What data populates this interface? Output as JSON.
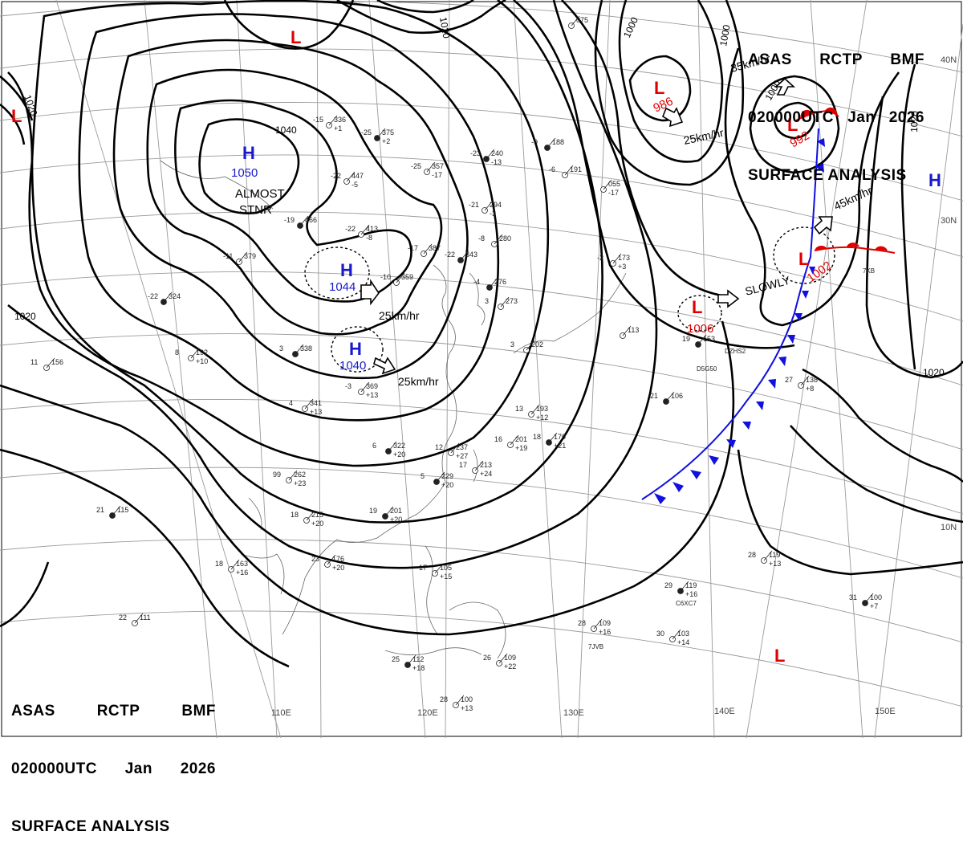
{
  "header": {
    "agency": "ASAS",
    "station": "RCTP",
    "office": "BMF",
    "time": "020000UTC",
    "month": "Jan",
    "year": "2026",
    "title": "SURFACE ANALYSIS"
  },
  "colors": {
    "high": "#1a1acc",
    "low": "#e00000",
    "cold_front": "#1010e0",
    "warm_front": "#e00000",
    "isobar": "#000000",
    "grid": "#999999"
  },
  "latitude_labels": [
    "40N",
    "30N",
    "10N"
  ],
  "longitude_labels": [
    "110E",
    "120E",
    "130E",
    "140E",
    "150E"
  ],
  "pressure_centers": [
    {
      "type": "H",
      "symbol": "H",
      "pressure": "1050",
      "note": "ALMOST",
      "note2": "STNR"
    },
    {
      "type": "H",
      "symbol": "H",
      "pressure": "1044",
      "movement": "25km/hr"
    },
    {
      "type": "H",
      "symbol": "H",
      "pressure": "1040",
      "movement": "25km/hr"
    },
    {
      "type": "H",
      "symbol": "H",
      "pressure": ""
    },
    {
      "type": "L",
      "symbol": "L",
      "pressure": "986",
      "movement": "25km/hr"
    },
    {
      "type": "L",
      "symbol": "L",
      "pressure": "992",
      "movement": "35km/hr"
    },
    {
      "type": "L",
      "symbol": "L",
      "pressure": "1002",
      "movement": "45km/hr"
    },
    {
      "type": "L",
      "symbol": "L",
      "pressure": "1006",
      "movement": "SLOWLY"
    },
    {
      "type": "L",
      "symbol": "L",
      "pressure": ""
    },
    {
      "type": "L",
      "symbol": "L",
      "pressure": ""
    },
    {
      "type": "L",
      "symbol": "L",
      "pressure": ""
    }
  ],
  "isobar_labels": [
    "1020",
    "1020",
    "1040",
    "1020",
    "1000",
    "1000",
    "1000",
    "1020",
    "1020"
  ],
  "station_plots": [
    {
      "temp": "-25",
      "pressure": "375",
      "trend": "+2"
    },
    {
      "temp": "-15",
      "pressure": "336",
      "trend": "+1"
    },
    {
      "temp": "-25",
      "pressure": "357",
      "trend": "-17"
    },
    {
      "temp": "-23",
      "pressure": "240",
      "trend": "-13"
    },
    {
      "temp": "-21",
      "pressure": "294",
      "trend": "-3"
    },
    {
      "temp": "-22",
      "pressure": "447",
      "trend": "-5"
    },
    {
      "temp": "-19",
      "pressure": "466",
      "trend": ""
    },
    {
      "temp": "-22",
      "pressure": "413",
      "trend": "-8"
    },
    {
      "temp": "-17",
      "pressure": "387",
      "trend": ""
    },
    {
      "temp": "-22",
      "pressure": "343",
      "trend": ""
    },
    {
      "temp": "-10",
      "pressure": "359",
      "trend": ""
    },
    {
      "temp": "-11",
      "pressure": "379",
      "trend": ""
    },
    {
      "temp": "-22",
      "pressure": "324",
      "trend": ""
    },
    {
      "temp": "11",
      "pressure": "156",
      "trend": ""
    },
    {
      "temp": "8",
      "pressure": "192",
      "trend": "+10"
    },
    {
      "temp": "3",
      "pressure": "338",
      "trend": ""
    },
    {
      "temp": "-3",
      "pressure": "369",
      "trend": "+13"
    },
    {
      "temp": "4",
      "pressure": "341",
      "trend": "+13"
    },
    {
      "temp": "6",
      "pressure": "322",
      "trend": "+20"
    },
    {
      "temp": "99",
      "pressure": "262",
      "trend": "+23"
    },
    {
      "temp": "18",
      "pressure": "215",
      "trend": "+20"
    },
    {
      "temp": "19",
      "pressure": "201",
      "trend": "+20"
    },
    {
      "temp": "23",
      "pressure": "176",
      "trend": "+20"
    },
    {
      "temp": "18",
      "pressure": "163",
      "trend": "+16"
    },
    {
      "temp": "21",
      "pressure": "115",
      "trend": ""
    },
    {
      "temp": "22",
      "pressure": "111",
      "trend": ""
    },
    {
      "temp": "17",
      "pressure": "105",
      "trend": "+15"
    },
    {
      "temp": "25",
      "pressure": "112",
      "trend": "+18"
    },
    {
      "temp": "26",
      "pressure": "109",
      "trend": "+22"
    },
    {
      "temp": "28",
      "pressure": "100",
      "trend": "+13"
    },
    {
      "temp": "29",
      "pressure": "119",
      "trend": "+16"
    },
    {
      "temp": "28",
      "pressure": "109",
      "trend": "+16"
    },
    {
      "temp": "30",
      "pressure": "103",
      "trend": "+14"
    },
    {
      "temp": "31",
      "pressure": "100",
      "trend": "+7"
    },
    {
      "temp": "28",
      "pressure": "119",
      "trend": "+13"
    },
    {
      "temp": "27",
      "pressure": "138",
      "trend": "+8"
    },
    {
      "temp": "21",
      "pressure": "106",
      "trend": ""
    },
    {
      "temp": "13",
      "pressure": "193",
      "trend": "+12"
    },
    {
      "temp": "16",
      "pressure": "201",
      "trend": "+19"
    },
    {
      "temp": "18",
      "pressure": "170",
      "trend": "+21"
    },
    {
      "temp": "12",
      "pressure": "237",
      "trend": "+27"
    },
    {
      "temp": "17",
      "pressure": "213",
      "trend": "+24"
    },
    {
      "temp": "5",
      "pressure": "229",
      "trend": "+20"
    },
    {
      "temp": "3",
      "pressure": "273",
      "trend": ""
    },
    {
      "temp": "3",
      "pressure": "202",
      "trend": ""
    },
    {
      "temp": "-4",
      "pressure": "276",
      "trend": ""
    },
    {
      "temp": "-8",
      "pressure": "280",
      "trend": ""
    },
    {
      "temp": "-2",
      "pressure": "173",
      "trend": "+3"
    },
    {
      "temp": "-9",
      "pressure": "188",
      "trend": ""
    },
    {
      "temp": "-6",
      "pressure": "191",
      "trend": ""
    },
    {
      "temp": "",
      "pressure": "113",
      "trend": ""
    },
    {
      "temp": "19",
      "pressure": "153",
      "trend": ""
    },
    {
      "temp": "",
      "pressure": "055",
      "trend": "-17"
    },
    {
      "temp": "",
      "pressure": "075",
      "trend": ""
    }
  ],
  "ship_calls": [
    "C6XC7",
    "7JVB",
    "7KB",
    "DZHS2",
    "D5G50"
  ]
}
